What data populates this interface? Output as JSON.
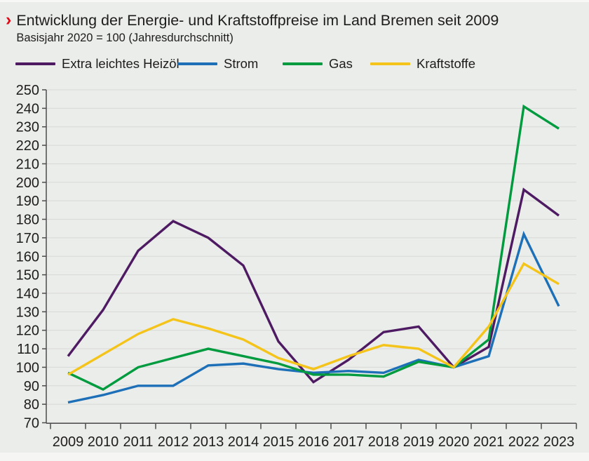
{
  "page": {
    "bg": "#ebedeb",
    "footer_bg": "#f5f6f4"
  },
  "header": {
    "marker": "›",
    "marker_color": "#e30613",
    "title": "Entwicklung der Energie- und Kraftstoffpreise im Land Bremen seit 2009",
    "subtitle": "Basisjahr 2020 = 100 (Jahresdurchschnitt)"
  },
  "chart_data": {
    "type": "line",
    "title": "Entwicklung der Energie- und Kraftstoffpreise im Land Bremen seit 2009",
    "subtitle": "Basisjahr 2020 = 100 (Jahresdurchschnitt)",
    "x": [
      "2009",
      "2010",
      "2011",
      "2012",
      "2013",
      "2014",
      "2015",
      "2016",
      "2017",
      "2018",
      "2019",
      "2020",
      "2021",
      "2022",
      "2023"
    ],
    "series": [
      {
        "name": "Extra leichtes Heizöl",
        "color": "#4e1b63",
        "values": [
          106,
          131,
          163,
          179,
          170,
          155,
          114,
          92,
          104,
          119,
          122,
          100,
          111,
          196,
          182
        ]
      },
      {
        "name": "Strom",
        "color": "#1d70b7",
        "values": [
          81,
          85,
          90,
          90,
          101,
          102,
          99,
          97,
          98,
          97,
          104,
          100,
          106,
          172,
          133
        ]
      },
      {
        "name": "Gas",
        "color": "#009b3e",
        "values": [
          97,
          88,
          100,
          105,
          110,
          106,
          102,
          96,
          96,
          95,
          103,
          100,
          115,
          241,
          229
        ]
      },
      {
        "name": "Kraftstoffe",
        "color": "#f4c41a",
        "values": [
          96,
          107,
          118,
          126,
          121,
          115,
          105,
          99,
          106,
          112,
          110,
          100,
          122,
          156,
          145
        ]
      }
    ],
    "ylim": [
      70,
      250
    ],
    "ytick_step": 10,
    "grid": true,
    "legend_position": "top",
    "axis_color": "#4c4c4c",
    "grid_color": "#d8d9d7",
    "tick_label_color": "#1d1d1b"
  }
}
